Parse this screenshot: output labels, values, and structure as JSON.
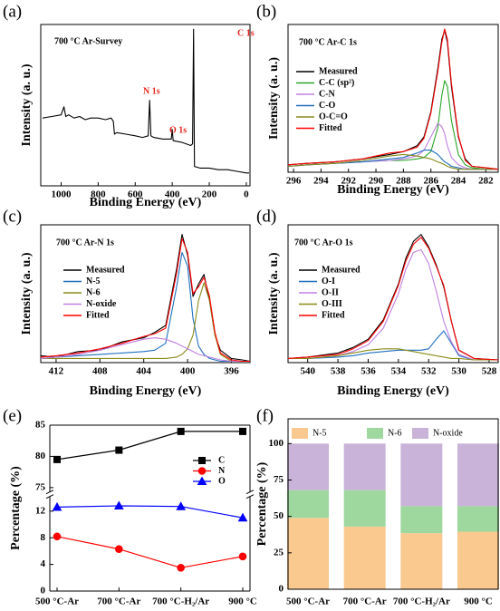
{
  "chart_data": [
    {
      "type": "line",
      "panel": "(a)",
      "note": "700 °C Ar-Survey",
      "xlabel": "Binding Energy (eV)",
      "ylabel": "Intensity (a. u.)",
      "xlim": [
        1110,
        -20
      ],
      "xticks": [
        1000,
        800,
        600,
        400,
        200,
        0
      ],
      "ylim": [
        0,
        100
      ],
      "x": [
        1100,
        1050,
        1000,
        985,
        975,
        960,
        930,
        900,
        870,
        840,
        800,
        760,
        730,
        718,
        712,
        700,
        650,
        600,
        560,
        530,
        522,
        515,
        500,
        450,
        405,
        400,
        395,
        350,
        300,
        290,
        285,
        280,
        250,
        200,
        150,
        100,
        50,
        0,
        -15
      ],
      "values": [
        42,
        43,
        44,
        49,
        43,
        44,
        42,
        43,
        41,
        42,
        42,
        41,
        42,
        40,
        32,
        33,
        32,
        31,
        30,
        31,
        53,
        31,
        30,
        29,
        29,
        35,
        28,
        27,
        25,
        26,
        97,
        12,
        11,
        11,
        10,
        10,
        9,
        8,
        8
      ],
      "color": "#000000",
      "peak_labels": [
        "N 1s",
        "O 1s",
        "C 1s"
      ],
      "peak_label_color": "#e8261d"
    },
    {
      "type": "line",
      "panel": "(b)",
      "note": "700 °C Ar-C 1s",
      "xlabel": "Binding Energy (eV)",
      "ylabel": "Intensity (a. u.)",
      "xlim": [
        296.4,
        281.1
      ],
      "xticks": [
        296,
        294,
        292,
        290,
        288,
        286,
        284,
        282
      ],
      "ylim": [
        0,
        100
      ],
      "legend": "upper left",
      "x": [
        296.4,
        295,
        293,
        291,
        289,
        288,
        287,
        286.5,
        286,
        285.5,
        285.2,
        285,
        284.8,
        284.5,
        284,
        283.5,
        283,
        282,
        281.1
      ],
      "series": [
        {
          "name": "Measured",
          "color": "#000000",
          "values": [
            5,
            6,
            7,
            9,
            12,
            14,
            18,
            24,
            41,
            70,
            90,
            96,
            88,
            58,
            24,
            9,
            4,
            3,
            2
          ]
        },
        {
          "name": "C-C (sp²)",
          "color": "#2aa52a",
          "values": [
            4,
            5,
            6,
            7,
            8,
            8,
            9,
            10,
            14,
            30,
            52,
            62,
            58,
            35,
            12,
            5,
            3,
            2,
            2
          ]
        },
        {
          "name": "C-N",
          "color": "#c080e0",
          "values": [
            4,
            5,
            6,
            7,
            8,
            9,
            11,
            15,
            24,
            33,
            31,
            26,
            18,
            10,
            5,
            3,
            2,
            2,
            2
          ]
        },
        {
          "name": "C-O",
          "color": "#1f6fc0",
          "values": [
            4,
            5,
            6,
            7,
            9,
            10,
            13,
            15,
            15,
            12,
            9,
            7,
            6,
            4,
            3,
            2,
            2,
            2,
            2
          ]
        },
        {
          "name": "O-C=O",
          "color": "#8a8a1a",
          "values": [
            4,
            5,
            6,
            8,
            11,
            12,
            11,
            10,
            9,
            7,
            6,
            5,
            4,
            3,
            2,
            2,
            2,
            2,
            2
          ]
        },
        {
          "name": "Fitted",
          "color": "#ff0000",
          "values": [
            5,
            6,
            7,
            9,
            13,
            14,
            17,
            23,
            40,
            68,
            88,
            97,
            90,
            60,
            25,
            8,
            4,
            3,
            2
          ]
        }
      ]
    },
    {
      "type": "line",
      "panel": "(c)",
      "note": "700 °C Ar-N 1s",
      "xlabel": "Binding Energy (eV)",
      "ylabel": "Intensity (a. u.)",
      "xlim": [
        413.4,
        394.3
      ],
      "xticks": [
        412,
        408,
        404,
        400,
        396
      ],
      "ylim": [
        0,
        100
      ],
      "legend": "upper left",
      "x": [
        413.4,
        412,
        410,
        408,
        406,
        404,
        403,
        402,
        401,
        400.5,
        400,
        399.5,
        399,
        398.5,
        398,
        397.5,
        397,
        396,
        395,
        394.3
      ],
      "series": [
        {
          "name": "Measured",
          "color": "#000000",
          "values": [
            5,
            4,
            8,
            9,
            15,
            18,
            22,
            27,
            68,
            93,
            78,
            48,
            57,
            64,
            45,
            20,
            9,
            3,
            2,
            1
          ]
        },
        {
          "name": "N-5",
          "color": "#1f6fc0",
          "values": [
            3,
            4,
            5,
            6,
            7,
            8,
            9,
            14,
            55,
            80,
            70,
            32,
            12,
            6,
            3,
            2,
            1,
            1,
            1,
            1
          ]
        },
        {
          "name": "N-6",
          "color": "#8a8a1a",
          "values": [
            3,
            3,
            3,
            3,
            3,
            3,
            3,
            3,
            4,
            6,
            10,
            20,
            45,
            58,
            45,
            20,
            6,
            1,
            1,
            1
          ]
        },
        {
          "name": "N-oxide",
          "color": "#c080e0",
          "values": [
            3,
            4,
            6,
            9,
            13,
            17,
            18,
            17,
            14,
            12,
            10,
            8,
            6,
            5,
            4,
            3,
            2,
            1,
            1,
            1
          ]
        },
        {
          "name": "Fitted",
          "color": "#ff0000",
          "values": [
            4,
            5,
            7,
            10,
            14,
            19,
            21,
            25,
            65,
            90,
            80,
            50,
            55,
            62,
            48,
            22,
            7,
            2,
            1,
            1
          ]
        }
      ]
    },
    {
      "type": "line",
      "panel": "(d)",
      "note": "700 °C Ar-O 1s",
      "xlabel": "Binding Energy (eV)",
      "ylabel": "Intensity (a. u.)",
      "xlim": [
        541.3,
        527.4
      ],
      "xticks": [
        540,
        538,
        536,
        534,
        532,
        530,
        528
      ],
      "ylim": [
        0,
        100
      ],
      "legend": "upper left",
      "x": [
        541.3,
        540,
        538,
        537,
        536,
        535,
        534,
        533.5,
        533,
        532.5,
        532,
        531.5,
        531,
        530.5,
        530,
        529,
        527.4
      ],
      "series": [
        {
          "name": "Measured",
          "color": "#000000",
          "values": [
            3,
            4,
            7,
            11,
            17,
            31,
            57,
            76,
            88,
            93,
            84,
            71,
            55,
            30,
            9,
            3,
            2
          ]
        },
        {
          "name": "O-I",
          "color": "#1f6fc0",
          "values": [
            3,
            3,
            4,
            5,
            7,
            8,
            9,
            9,
            9,
            9,
            10,
            17,
            23,
            14,
            5,
            2,
            2
          ]
        },
        {
          "name": "O-II",
          "color": "#c080e0",
          "values": [
            3,
            3,
            5,
            8,
            13,
            25,
            50,
            68,
            80,
            82,
            72,
            52,
            30,
            15,
            6,
            2,
            2
          ]
        },
        {
          "name": "O-III",
          "color": "#8a8a1a",
          "values": [
            3,
            3,
            5,
            7,
            9,
            10,
            10,
            9,
            8,
            7,
            6,
            5,
            4,
            3,
            3,
            2,
            2
          ]
        },
        {
          "name": "Fitted",
          "color": "#ff0000",
          "values": [
            3,
            4,
            6,
            10,
            16,
            30,
            56,
            74,
            86,
            91,
            83,
            70,
            56,
            30,
            9,
            3,
            2
          ]
        }
      ]
    },
    {
      "type": "line",
      "panel": "(e)",
      "ylabel": "Percentage (%)",
      "legend": "upper right",
      "categories": [
        "500 °C-Ar",
        "700 °C-Ar",
        "700 °C-H₂/Ar",
        "900 °C"
      ],
      "ylim": [
        0,
        14.2
      ],
      "yticks": [
        0,
        4,
        8,
        12
      ],
      "ylim_upper": [
        74.3,
        85
      ],
      "yticks_upper": [
        75,
        80,
        85
      ],
      "series": [
        {
          "name": "C",
          "color": "#000000",
          "marker": "square",
          "values": [
            79.5,
            81,
            84,
            84
          ]
        },
        {
          "name": "N",
          "color": "#ff0000",
          "marker": "circle",
          "values": [
            8.2,
            6.3,
            3.5,
            5.2
          ]
        },
        {
          "name": "O",
          "color": "#0000ff",
          "marker": "triangle",
          "values": [
            12.6,
            12.8,
            12.7,
            11
          ]
        }
      ]
    },
    {
      "type": "bar",
      "stacked": true,
      "panel": "(f)",
      "ylabel": "Percentage (%)",
      "legend": "top",
      "categories": [
        "500 °C-Ar",
        "700 °C-Ar",
        "700 °C-H₂/Ar",
        "900 °C"
      ],
      "ylim": [
        0,
        117
      ],
      "yticks": [
        0,
        25,
        50,
        75,
        100
      ],
      "series": [
        {
          "name": "N-5",
          "color": "#f9c990",
          "values": [
            49,
            43,
            38.5,
            39.5
          ]
        },
        {
          "name": "N-6",
          "color": "#9ed89f",
          "values": [
            19,
            25,
            18.5,
            17.5
          ]
        },
        {
          "name": "N-oxide",
          "color": "#c9b3d8",
          "values": [
            32,
            32,
            43,
            43
          ]
        }
      ]
    }
  ]
}
